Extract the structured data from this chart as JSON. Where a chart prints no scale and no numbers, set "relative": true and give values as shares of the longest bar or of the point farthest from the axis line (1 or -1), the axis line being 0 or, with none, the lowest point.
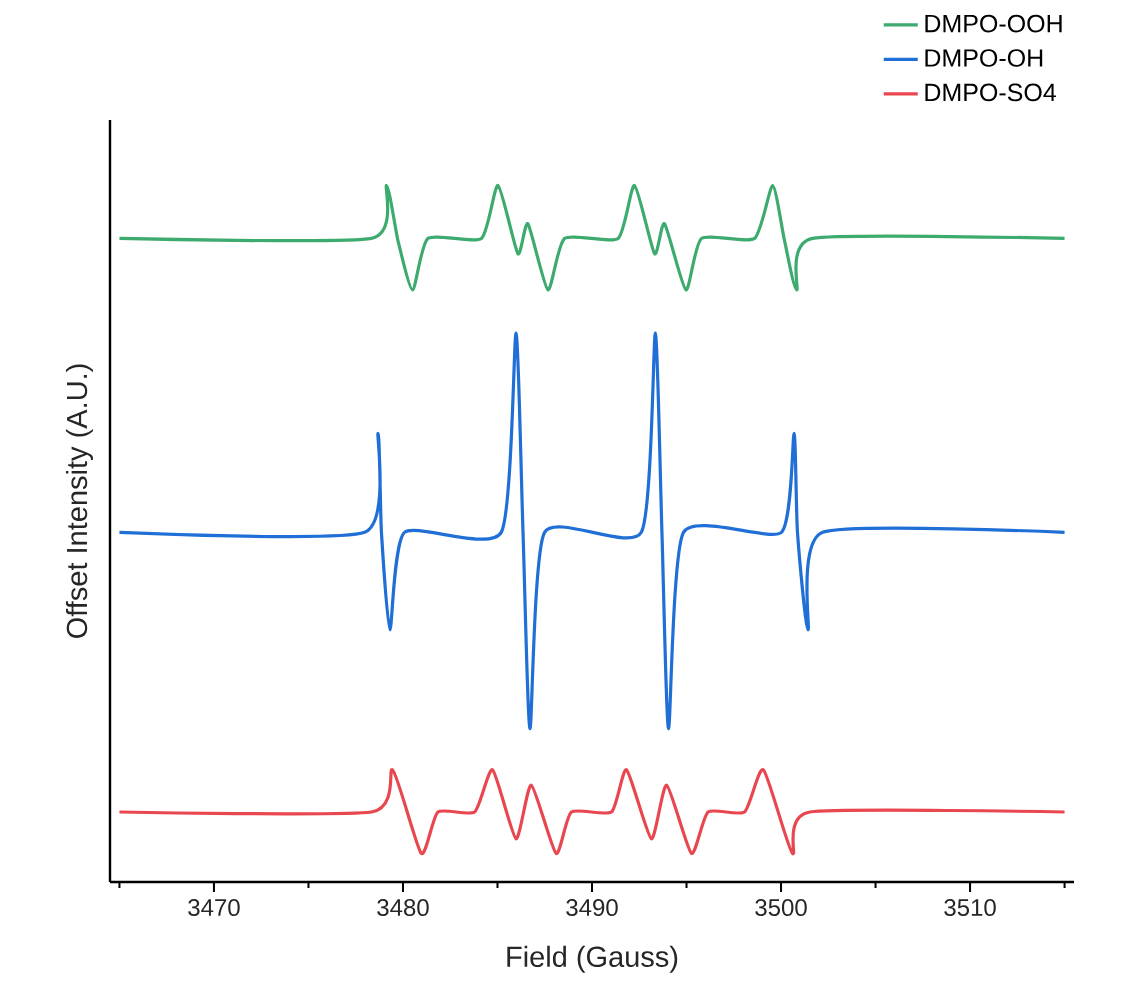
{
  "chart_data": {
    "type": "line",
    "relative": true,
    "xlabel": "Field (Gauss)",
    "ylabel": "Offset Intensity (A.U.)",
    "legend": "top right",
    "xlim": [
      3464.5,
      3515.5
    ],
    "xticks": [
      {
        "value": 3465,
        "label": null
      },
      3470,
      {
        "value": 3475,
        "label": null
      },
      3480,
      {
        "value": 3485,
        "label": null
      },
      3490,
      {
        "value": 3495,
        "label": null
      },
      3500,
      {
        "value": 3505,
        "label": null
      },
      3510,
      {
        "value": 3515,
        "label": null
      }
    ],
    "series": [
      {
        "name": "DMPO-OOH",
        "color": "#3daa6e",
        "x": [
          3465,
          3478.33,
          3479.13,
          3479.74,
          3480.51,
          3481.32,
          3484.15,
          3485.03,
          3486.08,
          3486.61,
          3487.67,
          3488.55,
          3491.38,
          3492.25,
          3493.31,
          3493.84,
          3494.97,
          3495.79,
          3498.6,
          3499.56,
          3500.19,
          3500.83,
          3501.67,
          3515
        ],
        "values": [
          0.924,
          0.924,
          1.0,
          0.92,
          0.85,
          0.924,
          0.924,
          1.0,
          0.902,
          0.945,
          0.85,
          0.924,
          0.924,
          1.0,
          0.902,
          0.945,
          0.85,
          0.924,
          0.924,
          1.0,
          0.92,
          0.85,
          0.924,
          0.924
        ]
      },
      {
        "name": "DMPO-OH",
        "color": "#1f6fd6",
        "x": [
          3465,
          3477.97,
          3478.68,
          3478.86,
          3479.31,
          3480.08,
          3485.2,
          3485.98,
          3486.35,
          3486.72,
          3487.49,
          3492.61,
          3493.35,
          3493.7,
          3494.05,
          3494.84,
          3500.02,
          3500.69,
          3500.87,
          3501.43,
          3502.2,
          3515
        ],
        "values": [
          0.502,
          0.502,
          0.644,
          0.502,
          0.362,
          0.502,
          0.502,
          0.788,
          0.502,
          0.22,
          0.502,
          0.502,
          0.788,
          0.502,
          0.22,
          0.502,
          0.502,
          0.644,
          0.502,
          0.362,
          0.502,
          0.502
        ]
      },
      {
        "name": "DMPO-SO4",
        "color": "#e8474f",
        "x": [
          3465,
          3478.33,
          3479.45,
          3480.97,
          3481.85,
          3483.79,
          3484.74,
          3485.98,
          3486.79,
          3488.1,
          3488.91,
          3491.03,
          3491.83,
          3493.14,
          3493.95,
          3495.26,
          3496.14,
          3498.07,
          3499.07,
          3500.61,
          3501.53,
          3515
        ],
        "values": [
          0.1005,
          0.1005,
          0.161,
          0.041,
          0.1005,
          0.1005,
          0.161,
          0.062,
          0.139,
          0.041,
          0.1005,
          0.1005,
          0.161,
          0.062,
          0.139,
          0.041,
          0.1005,
          0.1005,
          0.161,
          0.041,
          0.1005,
          0.1005
        ]
      }
    ]
  }
}
